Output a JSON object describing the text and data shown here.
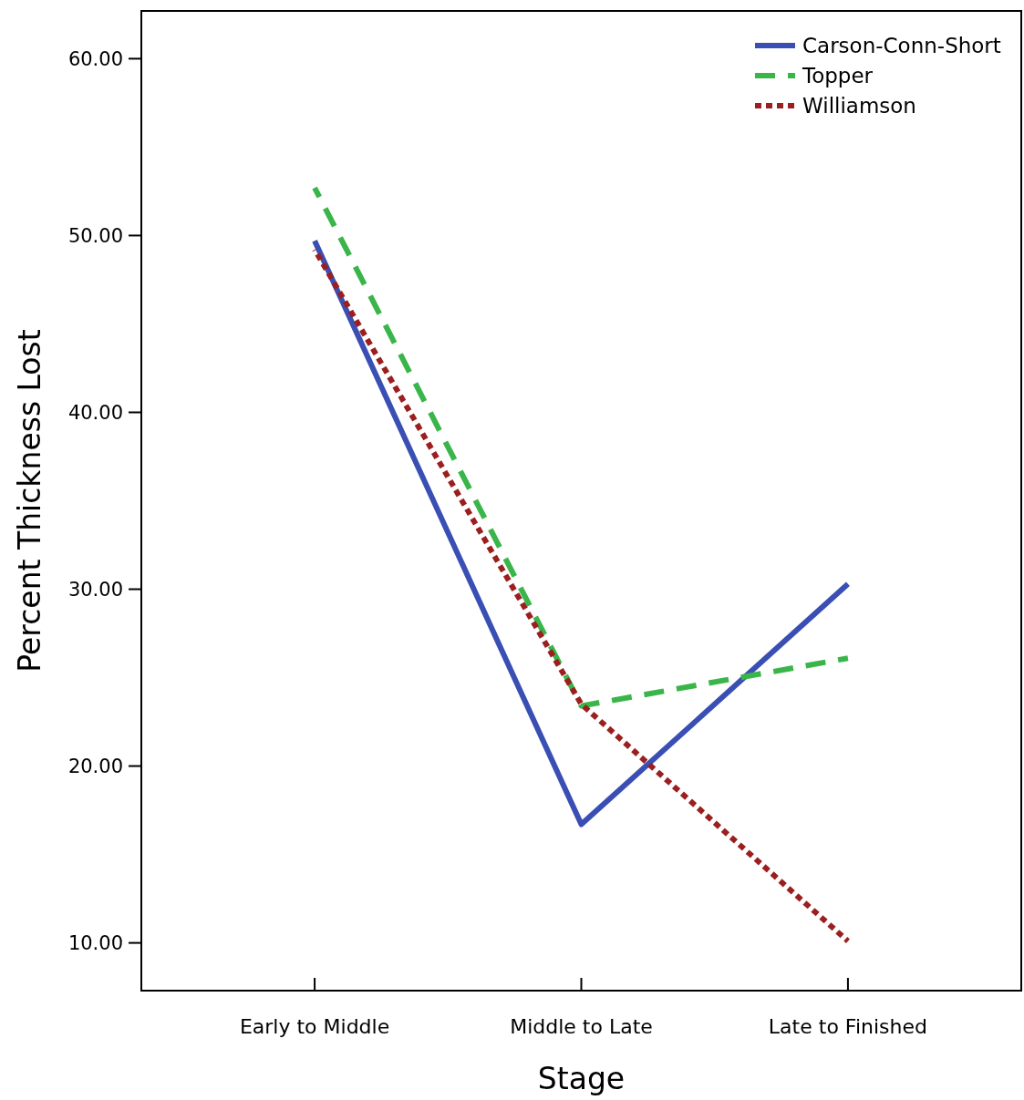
{
  "chart_data": {
    "type": "line",
    "xlabel": "Stage",
    "ylabel": "Percent Thickness Lost",
    "categories": [
      "Early to Middle",
      "Middle to Late",
      "Late to Finished"
    ],
    "series": [
      {
        "name": "Carson-Conn-Short",
        "color": "#3a4fb4",
        "values": [
          49.7,
          16.7,
          30.3
        ],
        "line_style": "solid"
      },
      {
        "name": "Topper",
        "color": "#3ab54a",
        "values": [
          52.7,
          23.4,
          26.1
        ],
        "line_style": "dashed"
      },
      {
        "name": "Williamson",
        "color": "#9b1f1f",
        "values": [
          49.2,
          23.5,
          10.1
        ],
        "line_style": "dotted"
      }
    ],
    "ylim": [
      7.3,
      62.7
    ],
    "yticks": [
      {
        "value": 10,
        "label": "10.00"
      },
      {
        "value": 20,
        "label": "20.00"
      },
      {
        "value": 30,
        "label": "30.00"
      },
      {
        "value": 40,
        "label": "40.00"
      },
      {
        "value": 50,
        "label": "50.00"
      },
      {
        "value": 60,
        "label": "60.00"
      }
    ],
    "grid": false,
    "legend": "top right",
    "marker": "none"
  }
}
